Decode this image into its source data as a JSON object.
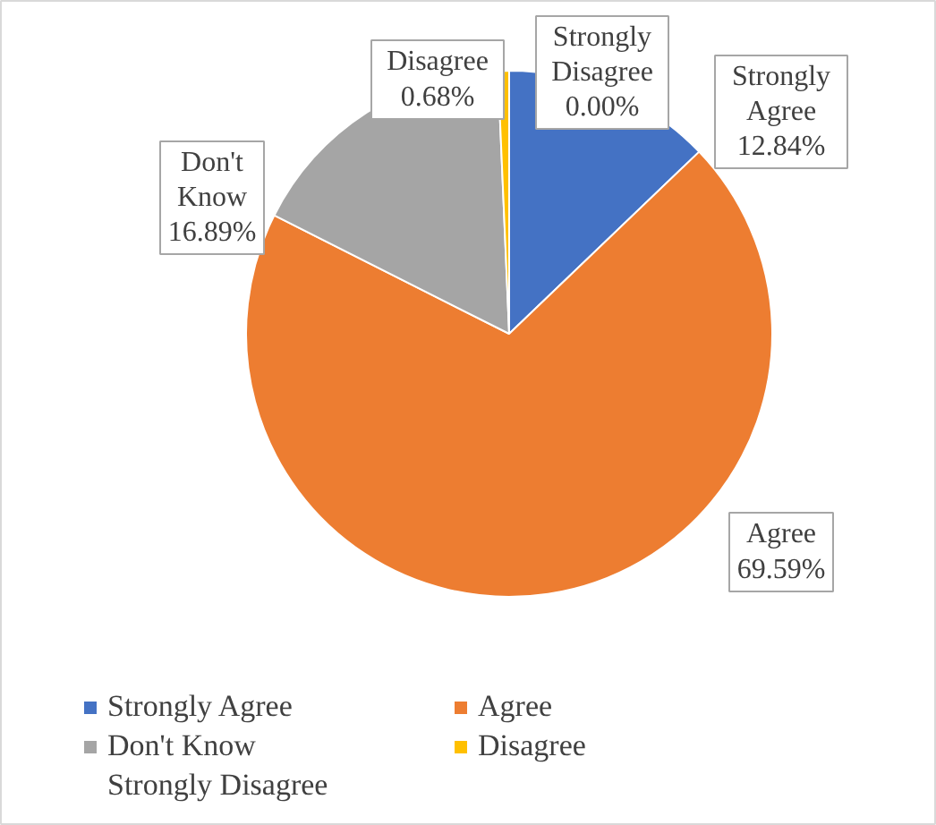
{
  "chart_data": {
    "type": "pie",
    "categories": [
      "Strongly Agree",
      "Agree",
      "Don't Know",
      "Disagree",
      "Strongly Disagree"
    ],
    "values": [
      12.84,
      69.59,
      16.89,
      0.68,
      0.0
    ],
    "colors": [
      "#4472c4",
      "#ed7d31",
      "#a5a5a5",
      "#ffc000",
      "#5b9bd5"
    ],
    "value_labels": [
      "Strongly\nAgree\n12.84%",
      "Agree\n69.59%",
      "Don't\nKnow\n16.89%",
      "Disagree\n0.68%",
      "Strongly\nDisagree\n0.00%"
    ],
    "legend": "bottom"
  }
}
